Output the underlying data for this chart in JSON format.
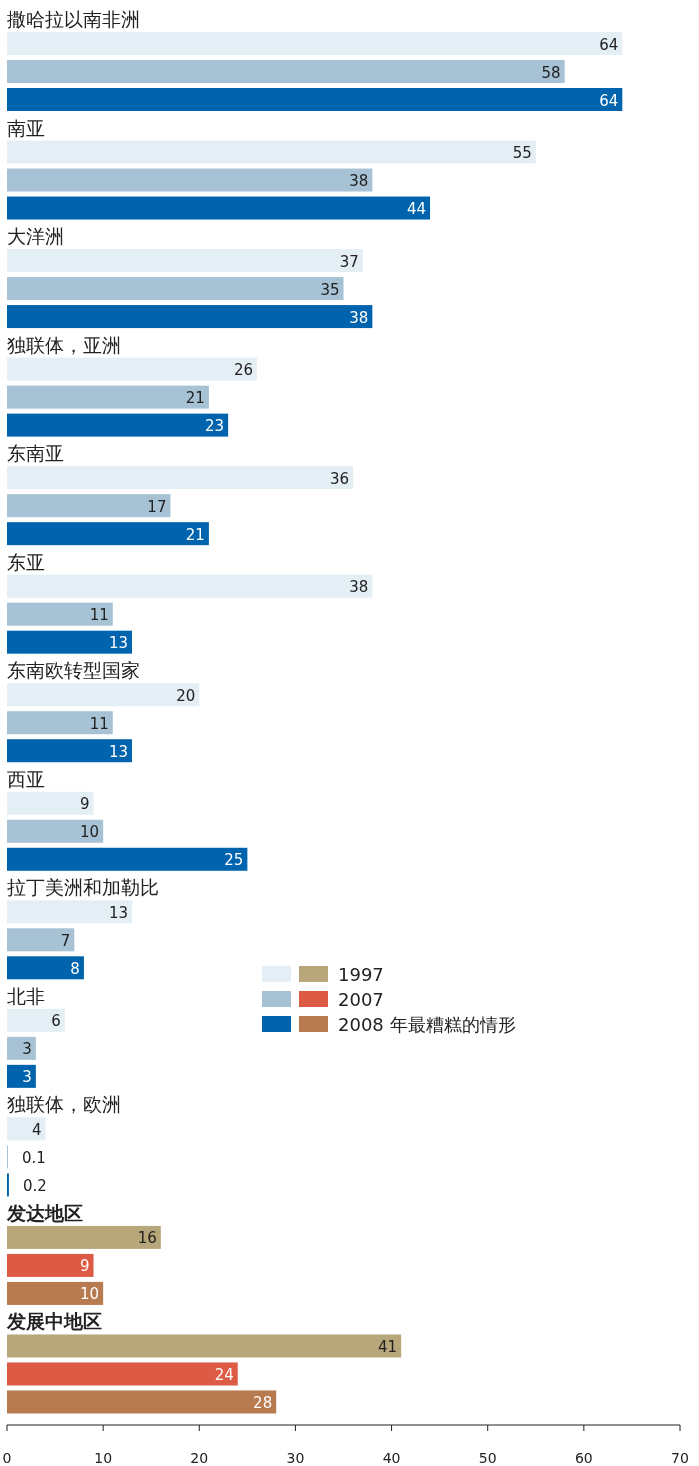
{
  "chart_data": {
    "type": "bar",
    "orientation": "horizontal",
    "categories": [
      "撒哈拉以南非洲",
      "南亚",
      "大洋洲",
      "独联体，亚洲",
      "东南亚",
      "东亚",
      "东南欧转型国家",
      "西亚",
      "拉丁美洲和加勒比",
      "北非",
      "独联体，欧洲",
      "发达地区",
      "发展中地区"
    ],
    "series": [
      {
        "name": "1997",
        "color": "#e3eef5",
        "colors": [
          "#e3eef5",
          "#e3eef5",
          "#e3eef5",
          "#e3eef5",
          "#e3eef5",
          "#e3eef5",
          "#e3eef5",
          "#e3eef5",
          "#e3eef5",
          "#e3eef5",
          "#e3eef5",
          "#b8a77a",
          "#b8a77a"
        ],
        "values": [
          64,
          55,
          37,
          26,
          36,
          38,
          20,
          9,
          13,
          6,
          4,
          16,
          41
        ]
      },
      {
        "name": "2007",
        "color": "#a6c2d4",
        "colors": [
          "#a6c2d4",
          "#a6c2d4",
          "#a6c2d4",
          "#a6c2d4",
          "#a6c2d4",
          "#a6c2d4",
          "#a6c2d4",
          "#a6c2d4",
          "#a6c2d4",
          "#a6c2d4",
          "#a6c2d4",
          "#dd5a44",
          "#dd5a44"
        ],
        "values": [
          58,
          38,
          35,
          21,
          17,
          11,
          11,
          10,
          7,
          3,
          0.1,
          9,
          24
        ]
      },
      {
        "name": "2008 年最糟糕的情形",
        "color": "#0063ad",
        "colors": [
          "#0063ad",
          "#0063ad",
          "#0063ad",
          "#0063ad",
          "#0063ad",
          "#0063ad",
          "#0063ad",
          "#0063ad",
          "#0063ad",
          "#0063ad",
          "#0063ad",
          "#b87a4f",
          "#b87a4f"
        ],
        "values": [
          64,
          44,
          38,
          23,
          21,
          13,
          13,
          25,
          8,
          3,
          0.2,
          10,
          28
        ]
      }
    ],
    "xlim": [
      0,
      70
    ],
    "xticks": [
      0,
      10,
      20,
      30,
      40,
      50,
      60,
      70
    ],
    "data_labels": true,
    "legend": "right",
    "grid": false
  }
}
